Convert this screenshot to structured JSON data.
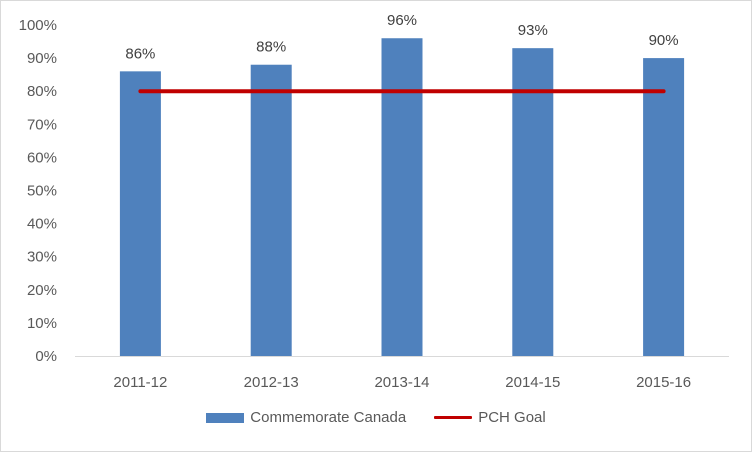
{
  "chart_data": {
    "type": "bar",
    "title": "",
    "xlabel": "",
    "ylabel": "",
    "categories": [
      "2011-12",
      "2012-13",
      "2013-14",
      "2014-15",
      "2015-16"
    ],
    "series": [
      {
        "name": "Commemorate Canada",
        "type": "bar",
        "values": [
          86,
          88,
          96,
          93,
          90
        ],
        "data_labels": [
          "86%",
          "88%",
          "96%",
          "93%",
          "90%"
        ],
        "color": "#4f81bd"
      },
      {
        "name": "PCH Goal",
        "type": "line",
        "values": [
          80,
          80,
          80,
          80,
          80
        ],
        "color": "#c00000"
      }
    ],
    "ylim": [
      0,
      100
    ],
    "yticks": [
      "0%",
      "10%",
      "20%",
      "30%",
      "40%",
      "50%",
      "60%",
      "70%",
      "80%",
      "90%",
      "100%"
    ],
    "unit": "%",
    "grid": false,
    "legend_position": "bottom"
  }
}
